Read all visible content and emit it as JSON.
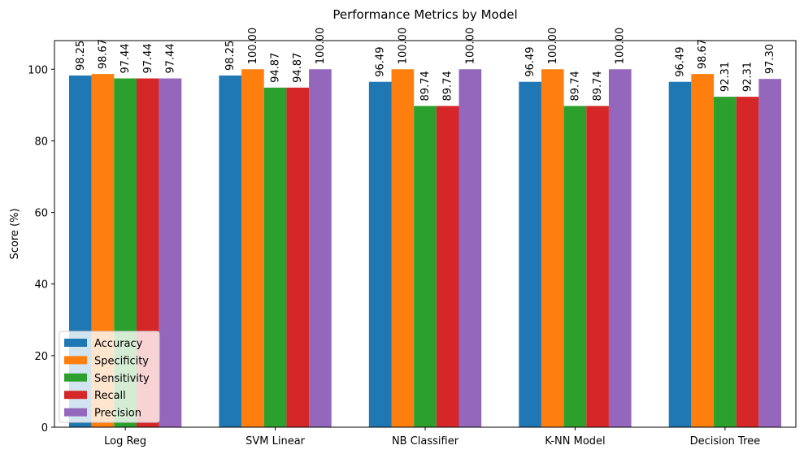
{
  "chart_data": {
    "type": "bar",
    "title": "Performance Metrics by Model",
    "xlabel": "",
    "ylabel": "Score (%)",
    "categories": [
      "Log Reg",
      "SVM Linear",
      "NB Classifier",
      "K-NN Model",
      "Decision Tree"
    ],
    "series": [
      {
        "name": "Accuracy",
        "color": "#1f77b4",
        "values": [
          98.25,
          98.25,
          96.49,
          96.49,
          96.49
        ],
        "labels": [
          "98.25",
          "98.25",
          "96.49",
          "96.49",
          "96.49"
        ]
      },
      {
        "name": "Specificity",
        "color": "#ff7f0e",
        "values": [
          98.67,
          100.0,
          100.0,
          100.0,
          98.67
        ],
        "labels": [
          "98.67",
          "100.00",
          "100.00",
          "100.00",
          "98.67"
        ]
      },
      {
        "name": "Sensitivity",
        "color": "#2ca02c",
        "values": [
          97.44,
          94.87,
          89.74,
          89.74,
          92.31
        ],
        "labels": [
          "97.44",
          "94.87",
          "89.74",
          "89.74",
          "92.31"
        ]
      },
      {
        "name": "Recall",
        "color": "#d62728",
        "values": [
          97.44,
          94.87,
          89.74,
          89.74,
          92.31
        ],
        "labels": [
          "97.44",
          "94.87",
          "89.74",
          "89.74",
          "92.31"
        ]
      },
      {
        "name": "Precision",
        "color": "#9467bd",
        "values": [
          97.44,
          100.0,
          100.0,
          100.0,
          97.3
        ],
        "labels": [
          "97.44",
          "100.00",
          "100.00",
          "100.00",
          "97.30"
        ]
      }
    ],
    "ylim": [
      0,
      108
    ],
    "yticks": [
      0,
      20,
      40,
      60,
      80,
      100
    ],
    "ytick_labels": [
      "0",
      "20",
      "40",
      "60",
      "80",
      "100"
    ],
    "grid": false,
    "legend_position": "lower-left"
  }
}
